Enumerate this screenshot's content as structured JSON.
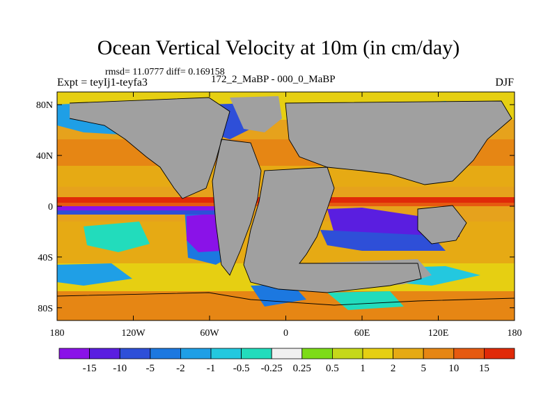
{
  "title": "Ocean Vertical Velocity at 10m (in cm/day)",
  "stats": "rmsd= 11.0777 diff= 0.169158",
  "experiment": "Expt = teyIj1-teyfa3",
  "period": "172_2_MaBP - 000_0_MaBP",
  "season": "DJF",
  "map": {
    "lon_range": [
      -180,
      180
    ],
    "lat_range": [
      -90,
      90
    ],
    "x_ticks": [
      {
        "lon": -180,
        "label": "180"
      },
      {
        "lon": -120,
        "label": "120W"
      },
      {
        "lon": -60,
        "label": "60W"
      },
      {
        "lon": 0,
        "label": "0"
      },
      {
        "lon": 60,
        "label": "60E"
      },
      {
        "lon": 120,
        "label": "120E"
      },
      {
        "lon": 180,
        "label": "180"
      }
    ],
    "y_ticks": [
      {
        "lat": 80,
        "label": "80N"
      },
      {
        "lat": 40,
        "label": "40N"
      },
      {
        "lat": 0,
        "label": "0"
      },
      {
        "lat": -40,
        "label": "40S"
      },
      {
        "lat": -80,
        "label": "80S"
      }
    ],
    "land_color": "#a0a0a0",
    "ocean_background": "#e6a21c"
  },
  "colorbar": {
    "colors": [
      "#8a12e8",
      "#5a1ee0",
      "#2e4fd8",
      "#1c78e0",
      "#1f9fe6",
      "#23c8df",
      "#22dcbc",
      "#f0f0f0",
      "#7ddc18",
      "#c5d81a",
      "#e6cf12",
      "#e6aa14",
      "#e68614",
      "#e65a10",
      "#e02a08"
    ],
    "labels": [
      "-15",
      "-10",
      "-5",
      "-2",
      "-1",
      "-0.5",
      "-0.25",
      "0.25",
      "0.5",
      "1",
      "2",
      "5",
      "10",
      "15"
    ]
  }
}
